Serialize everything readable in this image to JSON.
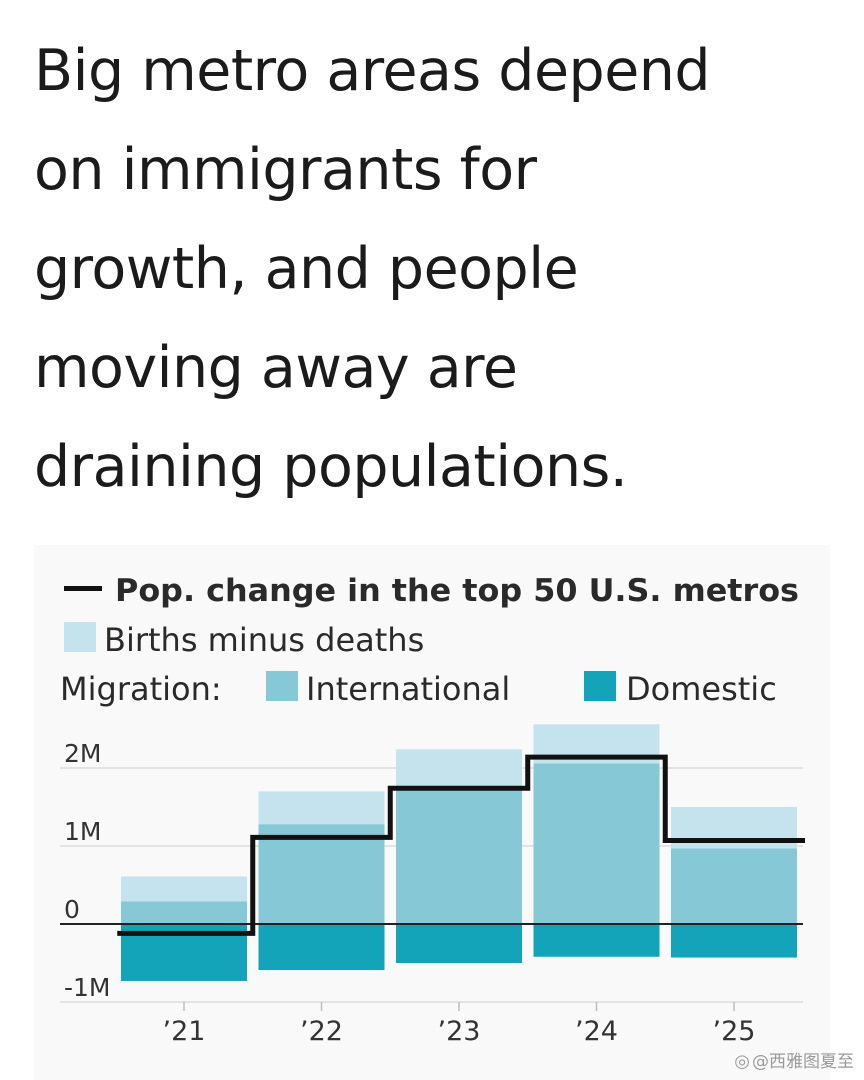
{
  "headline": {
    "lines": [
      "Big metro areas depend",
      "on immigrants for",
      "growth, and people",
      "moving away are",
      "draining populations."
    ]
  },
  "chart_data": {
    "type": "bar",
    "stacked": true,
    "title": "",
    "xlabel": "",
    "ylabel": "",
    "categories": [
      "’21",
      "’22",
      "’23",
      "’24",
      "’25"
    ],
    "series": [
      {
        "name": "Births minus deaths",
        "values": [
          0.32,
          0.42,
          0.48,
          0.5,
          0.53
        ],
        "color": "#c4e3ec"
      },
      {
        "name": "International",
        "values": [
          0.29,
          1.28,
          1.76,
          2.06,
          0.97
        ],
        "color": "#86c8d5"
      },
      {
        "name": "Domestic",
        "values": [
          -0.73,
          -0.59,
          -0.5,
          -0.42,
          -0.43
        ],
        "color": "#13a4b9"
      }
    ],
    "line_series": {
      "name": "Pop. change in the top 50 U.S. metros",
      "values": [
        -0.12,
        1.11,
        1.74,
        2.14,
        1.07
      ],
      "color": "#111111"
    },
    "legend": {
      "line_label": "Pop. change in the top 50 U.S. metros",
      "births_label": "Births minus deaths",
      "migration_prefix": "Migration:",
      "international_label": "International",
      "domestic_label": "Domestic"
    },
    "y_ticks": [
      {
        "value": 2,
        "label": "2M"
      },
      {
        "value": 1,
        "label": "1M"
      },
      {
        "value": 0,
        "label": "0"
      },
      {
        "value": -1,
        "label": "-1M"
      }
    ],
    "ylim": [
      -1,
      2.5
    ],
    "grid": true,
    "legend_position": "top"
  },
  "watermark": {
    "icon": "weibo-icon",
    "text": "@西雅图夏至"
  }
}
